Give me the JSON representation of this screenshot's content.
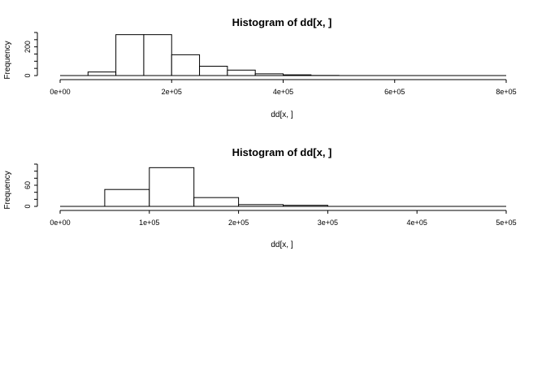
{
  "chart_data": [
    {
      "type": "bar",
      "title": "Histogram of dd[x, ]",
      "xlabel": "dd[x, ]",
      "ylabel": "Frequency",
      "bin_edges": [
        0,
        50000,
        100000,
        150000,
        200000,
        250000,
        300000,
        350000,
        400000,
        450000,
        500000,
        550000,
        600000,
        650000,
        700000,
        750000,
        800000
      ],
      "values": [
        0,
        25,
        285,
        285,
        145,
        65,
        38,
        12,
        5,
        1,
        0,
        0,
        0,
        0,
        0,
        0
      ],
      "xlim": [
        0,
        800000
      ],
      "ylim": [
        0,
        300
      ],
      "x_ticks": [
        0,
        200000,
        400000,
        600000,
        800000
      ],
      "x_tick_labels": [
        "0e+00",
        "2e+05",
        "4e+05",
        "6e+05",
        "8e+05"
      ],
      "y_ticks": [
        0,
        200
      ],
      "y_tick_labels": [
        "0",
        "200"
      ],
      "grid": false
    },
    {
      "type": "bar",
      "title": "Histogram of dd[x, ]",
      "xlabel": "dd[x, ]",
      "ylabel": "Frequency",
      "bin_edges": [
        0,
        50000,
        100000,
        150000,
        200000,
        250000,
        300000,
        350000,
        400000,
        450000,
        500000
      ],
      "values": [
        0,
        48,
        110,
        25,
        5,
        3,
        0,
        0,
        0,
        0
      ],
      "xlim": [
        0,
        500000
      ],
      "ylim": [
        0,
        120
      ],
      "x_ticks": [
        0,
        100000,
        200000,
        300000,
        400000,
        500000
      ],
      "x_tick_labels": [
        "0e+00",
        "1e+05",
        "2e+05",
        "3e+05",
        "4e+05",
        "5e+05"
      ],
      "y_ticks": [
        0,
        60
      ],
      "y_tick_labels": [
        "0",
        "60"
      ],
      "grid": false
    }
  ]
}
